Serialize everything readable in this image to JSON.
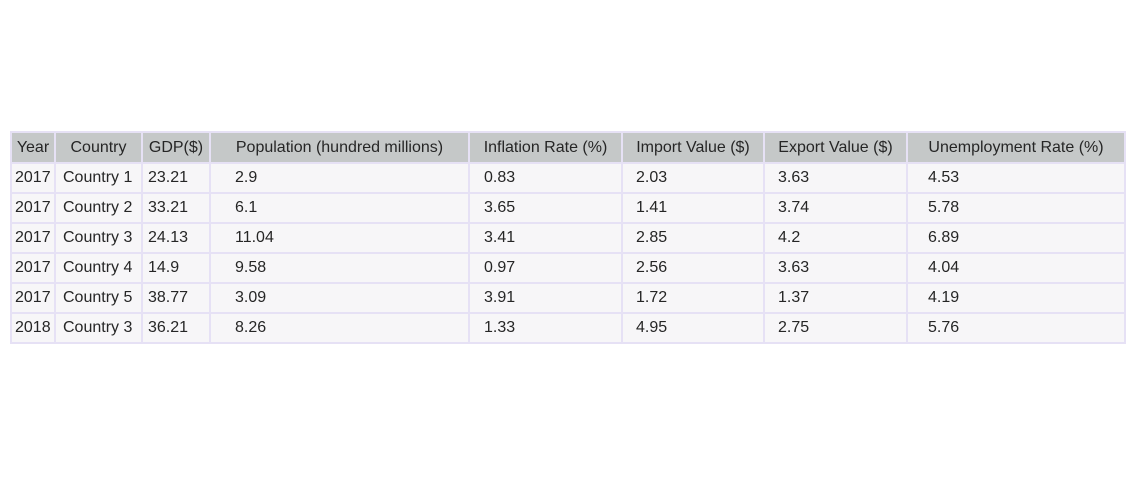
{
  "chart_data": {
    "type": "table",
    "columns": [
      "Year",
      "Country",
      "GDP($)",
      "Population (hundred millions)",
      "Inflation Rate (%)",
      "Import Value ($)",
      "Export Value ($)",
      "Unemployment Rate (%)"
    ],
    "rows": [
      [
        "2017",
        "Country 1",
        "23.21",
        "2.9",
        "0.83",
        "2.03",
        "3.63",
        "4.53"
      ],
      [
        "2017",
        "Country 2",
        "33.21",
        "6.1",
        "3.65",
        "1.41",
        "3.74",
        "5.78"
      ],
      [
        "2017",
        "Country 3",
        "24.13",
        "11.04",
        "3.41",
        "2.85",
        "4.2",
        "6.89"
      ],
      [
        "2017",
        "Country 4",
        "14.9",
        "9.58",
        "0.97",
        "2.56",
        "3.63",
        "4.04"
      ],
      [
        "2017",
        "Country 5",
        "38.77",
        "3.09",
        "3.91",
        "1.72",
        "1.37",
        "4.19"
      ],
      [
        "2018",
        "Country 3",
        "36.21",
        "8.26",
        "1.33",
        "4.95",
        "2.75",
        "5.76"
      ]
    ],
    "colors": {
      "header_bg": "#c5c8c8",
      "cell_bg": "#f7f6f8",
      "border": "#e6e1f5",
      "text": "#262626"
    }
  }
}
